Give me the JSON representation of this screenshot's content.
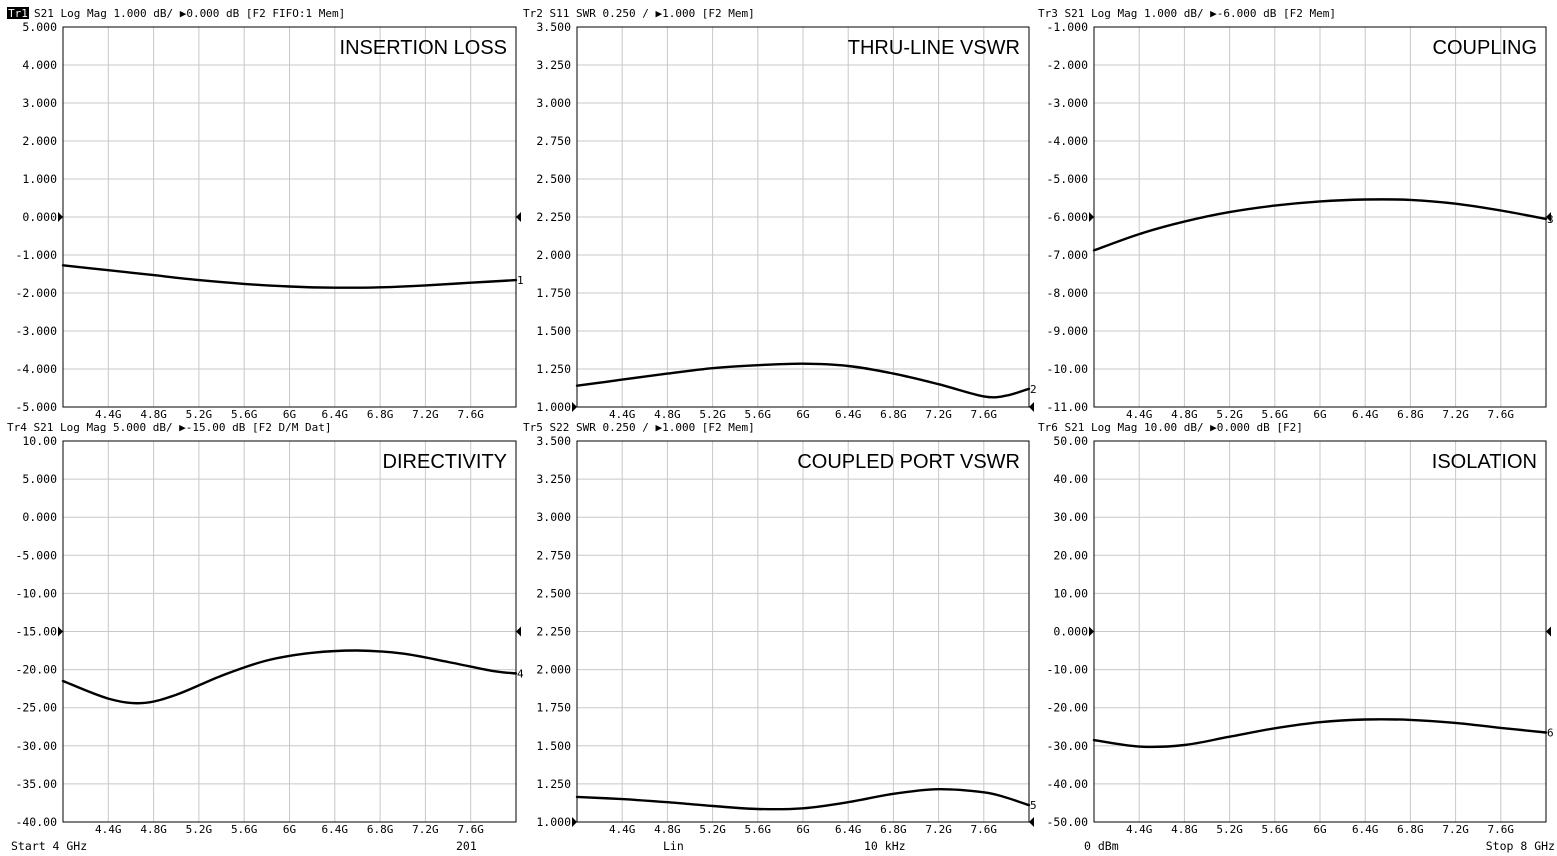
{
  "chart_data": [
    {
      "type": "line",
      "trace": "Tr1",
      "active": true,
      "header": "Tr1 S21 Log Mag 1.000 dB/ ▶0.000 dB [F2 FIFO:1 Mem]",
      "title": "INSERTION LOSS",
      "ylim": [
        -5.0,
        5.0
      ],
      "yticks": [
        "5.000",
        "4.000",
        "3.000",
        "2.000",
        "1.000",
        "0.000",
        "-1.000",
        "-2.000",
        "-3.000",
        "-4.000",
        "-5.000"
      ],
      "ref_value": 0.0,
      "ref_label": "0.000",
      "end_label": "1",
      "x": [
        4.0,
        4.4,
        4.8,
        5.2,
        5.6,
        6.0,
        6.4,
        6.8,
        7.2,
        7.6,
        8.0
      ],
      "y": [
        -1.27,
        -1.4,
        -1.53,
        -1.66,
        -1.76,
        -1.83,
        -1.86,
        -1.85,
        -1.8,
        -1.73,
        -1.66
      ]
    },
    {
      "type": "line",
      "trace": "Tr2",
      "active": false,
      "header": "Tr2 S11 SWR 0.250 / ▶1.000  [F2 Mem]",
      "title": "THRU-LINE VSWR",
      "ylim": [
        1.0,
        3.5
      ],
      "yticks": [
        "3.500",
        "3.250",
        "3.000",
        "2.750",
        "2.500",
        "2.250",
        "2.000",
        "1.750",
        "1.500",
        "1.250",
        "1.000"
      ],
      "ref_value": 1.0,
      "ref_label": "1.000",
      "end_label": "2",
      "x": [
        4.0,
        4.4,
        4.8,
        5.2,
        5.6,
        6.0,
        6.4,
        6.8,
        7.2,
        7.6,
        7.8,
        8.0
      ],
      "y": [
        1.14,
        1.18,
        1.22,
        1.255,
        1.275,
        1.285,
        1.27,
        1.22,
        1.15,
        1.07,
        1.075,
        1.12
      ]
    },
    {
      "type": "line",
      "trace": "Tr3",
      "active": false,
      "header": "Tr3 S21 Log Mag 1.000 dB/ ▶-6.000 dB [F2 Mem]",
      "title": "COUPLING",
      "ylim": [
        -11.0,
        -1.0
      ],
      "yticks": [
        "-1.000",
        "-2.000",
        "-3.000",
        "-4.000",
        "-5.000",
        "-6.000",
        "-7.000",
        "-8.000",
        "-9.000",
        "-10.00",
        "-11.00"
      ],
      "ref_value": -6.0,
      "ref_label": "-6.000",
      "end_label": "3",
      "x": [
        4.0,
        4.4,
        4.8,
        5.2,
        5.6,
        6.0,
        6.4,
        6.8,
        7.2,
        7.6,
        8.0
      ],
      "y": [
        -6.88,
        -6.45,
        -6.12,
        -5.87,
        -5.7,
        -5.59,
        -5.54,
        -5.55,
        -5.65,
        -5.83,
        -6.05
      ]
    },
    {
      "type": "line",
      "trace": "Tr4",
      "active": false,
      "header": "Tr4 S21 Log Mag 5.000 dB/ ▶-15.00 dB [F2 D/M Dat]",
      "title": "DIRECTIVITY",
      "ylim": [
        -40.0,
        10.0
      ],
      "yticks": [
        "10.00",
        "5.000",
        "0.000",
        "-5.000",
        "-10.00",
        "-15.00",
        "-20.00",
        "-25.00",
        "-30.00",
        "-35.00",
        "-40.00"
      ],
      "ref_value": -15.0,
      "ref_label": "-15.00",
      "end_label": "4",
      "x": [
        4.0,
        4.4,
        4.7,
        5.0,
        5.4,
        5.8,
        6.2,
        6.6,
        7.0,
        7.4,
        7.8,
        8.0
      ],
      "y": [
        -21.5,
        -23.8,
        -24.4,
        -23.3,
        -20.8,
        -18.8,
        -17.8,
        -17.5,
        -17.9,
        -19.0,
        -20.2,
        -20.5
      ]
    },
    {
      "type": "line",
      "trace": "Tr5",
      "active": false,
      "header": "Tr5 S22 SWR 0.250 / ▶1.000  [F2 Mem]",
      "title": "COUPLED PORT VSWR",
      "ylim": [
        1.0,
        3.5
      ],
      "yticks": [
        "3.500",
        "3.250",
        "3.000",
        "2.750",
        "2.500",
        "2.250",
        "2.000",
        "1.750",
        "1.500",
        "1.250",
        "1.000"
      ],
      "ref_value": 1.0,
      "ref_label": "1.000",
      "end_label": "5",
      "x": [
        4.0,
        4.4,
        4.8,
        5.2,
        5.6,
        6.0,
        6.4,
        6.8,
        7.2,
        7.6,
        7.8,
        8.0
      ],
      "y": [
        1.165,
        1.15,
        1.13,
        1.105,
        1.085,
        1.09,
        1.13,
        1.185,
        1.215,
        1.195,
        1.16,
        1.11
      ]
    },
    {
      "type": "line",
      "trace": "Tr6",
      "active": false,
      "header": "Tr6 S21 Log Mag 10.00 dB/ ▶0.000 dB [F2]",
      "title": "ISOLATION",
      "ylim": [
        -50.0,
        50.0
      ],
      "yticks": [
        "50.00",
        "40.00",
        "30.00",
        "20.00",
        "10.00",
        "0.000",
        "-10.00",
        "-20.00",
        "-30.00",
        "-40.00",
        "-50.00"
      ],
      "ref_value": 0.0,
      "ref_label": "0.000",
      "end_label": "6",
      "x": [
        4.0,
        4.4,
        4.8,
        5.2,
        5.6,
        6.0,
        6.4,
        6.8,
        7.2,
        7.6,
        8.0
      ],
      "y": [
        -28.5,
        -30.2,
        -29.8,
        -27.6,
        -25.4,
        -23.8,
        -23.1,
        -23.2,
        -24.0,
        -25.3,
        -26.5
      ]
    }
  ],
  "x_axis": {
    "min": 4.0,
    "max": 8.0,
    "tick_values": [
      4.4,
      4.8,
      5.2,
      5.6,
      6.0,
      6.4,
      6.8,
      7.2,
      7.6
    ],
    "tick_labels": [
      "4.4G",
      "4.8G",
      "5.2G",
      "5.6G",
      "6G",
      "6.4G",
      "6.8G",
      "7.2G",
      "7.6G"
    ]
  },
  "footer": {
    "start": "Start 4 GHz",
    "points": "201",
    "sweep_type": "Lin",
    "ifbw": "10 kHz",
    "power": "0 dBm",
    "stop": "Stop 8 GHz"
  },
  "colors": {
    "trace": "#000000",
    "grid": "#c8c8c8",
    "background": "#ffffff"
  }
}
